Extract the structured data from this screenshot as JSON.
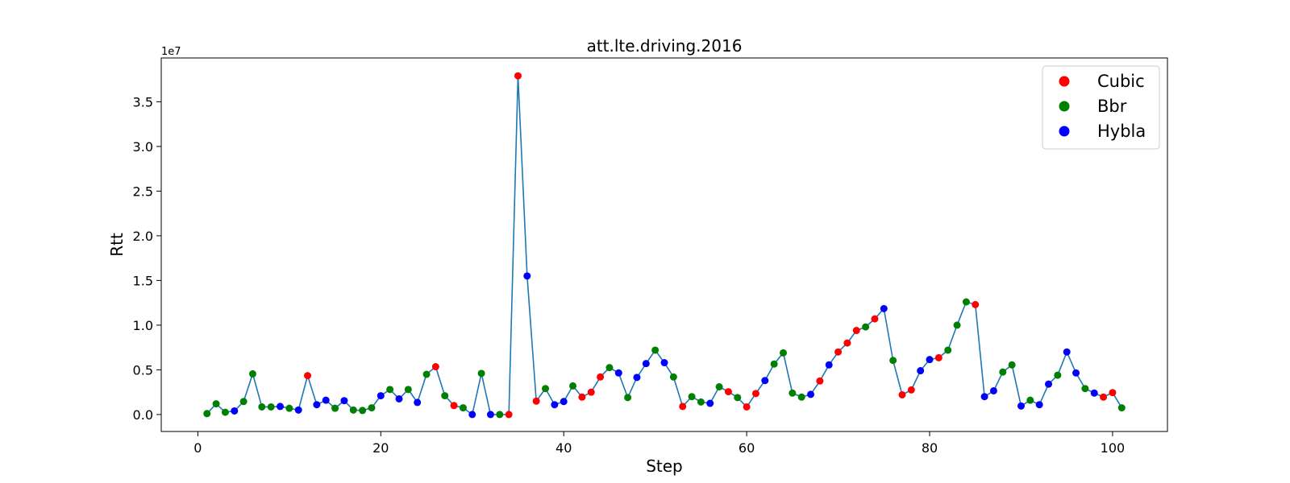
{
  "chart_data": {
    "type": "scatter",
    "title": "att.lte.driving.2016",
    "xlabel": "Step",
    "ylabel": "Rtt",
    "y_offset_label": "1e7",
    "xlim": [
      -4,
      106
    ],
    "ylim": [
      -1900000,
      39900000
    ],
    "x_ticks": [
      0,
      20,
      40,
      60,
      80,
      100
    ],
    "y_ticks": [
      0,
      5000000,
      10000000,
      15000000,
      20000000,
      25000000,
      30000000,
      35000000
    ],
    "y_tick_labels": [
      "0.0",
      "0.5",
      "1.0",
      "1.5",
      "2.0",
      "2.5",
      "3.0",
      "3.5"
    ],
    "grid": false,
    "legend_position": "top-right",
    "line_color": "#1f77b4",
    "legend": [
      {
        "label": "Cubic",
        "color": "#ff0000"
      },
      {
        "label": "Bbr",
        "color": "#008000"
      },
      {
        "label": "Hybla",
        "color": "#0000ff"
      }
    ],
    "points": [
      {
        "x": 1,
        "y": 100000,
        "series": "Bbr"
      },
      {
        "x": 2,
        "y": 1200000,
        "series": "Bbr"
      },
      {
        "x": 3,
        "y": 250000,
        "series": "Bbr"
      },
      {
        "x": 4,
        "y": 400000,
        "series": "Hybla"
      },
      {
        "x": 5,
        "y": 1450000,
        "series": "Bbr"
      },
      {
        "x": 6,
        "y": 4550000,
        "series": "Bbr"
      },
      {
        "x": 7,
        "y": 850000,
        "series": "Bbr"
      },
      {
        "x": 8,
        "y": 850000,
        "series": "Bbr"
      },
      {
        "x": 9,
        "y": 900000,
        "series": "Hybla"
      },
      {
        "x": 10,
        "y": 700000,
        "series": "Bbr"
      },
      {
        "x": 11,
        "y": 500000,
        "series": "Hybla"
      },
      {
        "x": 12,
        "y": 4350000,
        "series": "Cubic"
      },
      {
        "x": 13,
        "y": 1100000,
        "series": "Hybla"
      },
      {
        "x": 14,
        "y": 1600000,
        "series": "Hybla"
      },
      {
        "x": 15,
        "y": 700000,
        "series": "Bbr"
      },
      {
        "x": 16,
        "y": 1550000,
        "series": "Hybla"
      },
      {
        "x": 17,
        "y": 500000,
        "series": "Bbr"
      },
      {
        "x": 18,
        "y": 450000,
        "series": "Bbr"
      },
      {
        "x": 19,
        "y": 750000,
        "series": "Bbr"
      },
      {
        "x": 20,
        "y": 2100000,
        "series": "Hybla"
      },
      {
        "x": 21,
        "y": 2800000,
        "series": "Bbr"
      },
      {
        "x": 22,
        "y": 1750000,
        "series": "Hybla"
      },
      {
        "x": 23,
        "y": 2800000,
        "series": "Bbr"
      },
      {
        "x": 24,
        "y": 1350000,
        "series": "Hybla"
      },
      {
        "x": 25,
        "y": 4500000,
        "series": "Bbr"
      },
      {
        "x": 26,
        "y": 5350000,
        "series": "Cubic"
      },
      {
        "x": 27,
        "y": 2100000,
        "series": "Bbr"
      },
      {
        "x": 28,
        "y": 1000000,
        "series": "Cubic"
      },
      {
        "x": 29,
        "y": 750000,
        "series": "Bbr"
      },
      {
        "x": 30,
        "y": 0,
        "series": "Hybla"
      },
      {
        "x": 31,
        "y": 4600000,
        "series": "Bbr"
      },
      {
        "x": 32,
        "y": 0,
        "series": "Hybla"
      },
      {
        "x": 33,
        "y": 0,
        "series": "Bbr"
      },
      {
        "x": 34,
        "y": 0,
        "series": "Cubic"
      },
      {
        "x": 35,
        "y": 37900000,
        "series": "Cubic"
      },
      {
        "x": 36,
        "y": 15500000,
        "series": "Hybla"
      },
      {
        "x": 37,
        "y": 1500000,
        "series": "Cubic"
      },
      {
        "x": 38,
        "y": 2900000,
        "series": "Bbr"
      },
      {
        "x": 39,
        "y": 1100000,
        "series": "Hybla"
      },
      {
        "x": 40,
        "y": 1450000,
        "series": "Hybla"
      },
      {
        "x": 41,
        "y": 3200000,
        "series": "Bbr"
      },
      {
        "x": 42,
        "y": 1950000,
        "series": "Cubic"
      },
      {
        "x": 43,
        "y": 2500000,
        "series": "Cubic"
      },
      {
        "x": 44,
        "y": 4200000,
        "series": "Cubic"
      },
      {
        "x": 45,
        "y": 5250000,
        "series": "Bbr"
      },
      {
        "x": 46,
        "y": 4650000,
        "series": "Hybla"
      },
      {
        "x": 47,
        "y": 1900000,
        "series": "Bbr"
      },
      {
        "x": 48,
        "y": 4150000,
        "series": "Hybla"
      },
      {
        "x": 49,
        "y": 5700000,
        "series": "Hybla"
      },
      {
        "x": 50,
        "y": 7200000,
        "series": "Bbr"
      },
      {
        "x": 51,
        "y": 5800000,
        "series": "Hybla"
      },
      {
        "x": 52,
        "y": 4200000,
        "series": "Bbr"
      },
      {
        "x": 53,
        "y": 900000,
        "series": "Cubic"
      },
      {
        "x": 54,
        "y": 2000000,
        "series": "Bbr"
      },
      {
        "x": 55,
        "y": 1400000,
        "series": "Bbr"
      },
      {
        "x": 56,
        "y": 1250000,
        "series": "Hybla"
      },
      {
        "x": 57,
        "y": 3100000,
        "series": "Bbr"
      },
      {
        "x": 58,
        "y": 2550000,
        "series": "Cubic"
      },
      {
        "x": 59,
        "y": 1900000,
        "series": "Bbr"
      },
      {
        "x": 60,
        "y": 850000,
        "series": "Cubic"
      },
      {
        "x": 61,
        "y": 2350000,
        "series": "Cubic"
      },
      {
        "x": 62,
        "y": 3800000,
        "series": "Hybla"
      },
      {
        "x": 63,
        "y": 5650000,
        "series": "Bbr"
      },
      {
        "x": 64,
        "y": 6900000,
        "series": "Bbr"
      },
      {
        "x": 65,
        "y": 2400000,
        "series": "Bbr"
      },
      {
        "x": 66,
        "y": 1950000,
        "series": "Bbr"
      },
      {
        "x": 67,
        "y": 2250000,
        "series": "Hybla"
      },
      {
        "x": 68,
        "y": 3750000,
        "series": "Cubic"
      },
      {
        "x": 69,
        "y": 5550000,
        "series": "Hybla"
      },
      {
        "x": 70,
        "y": 7000000,
        "series": "Cubic"
      },
      {
        "x": 71,
        "y": 8000000,
        "series": "Cubic"
      },
      {
        "x": 72,
        "y": 9400000,
        "series": "Cubic"
      },
      {
        "x": 73,
        "y": 9800000,
        "series": "Bbr"
      },
      {
        "x": 74,
        "y": 10700000,
        "series": "Cubic"
      },
      {
        "x": 75,
        "y": 11850000,
        "series": "Hybla"
      },
      {
        "x": 76,
        "y": 6050000,
        "series": "Bbr"
      },
      {
        "x": 77,
        "y": 2200000,
        "series": "Cubic"
      },
      {
        "x": 78,
        "y": 2750000,
        "series": "Cubic"
      },
      {
        "x": 79,
        "y": 4900000,
        "series": "Hybla"
      },
      {
        "x": 80,
        "y": 6150000,
        "series": "Hybla"
      },
      {
        "x": 81,
        "y": 6350000,
        "series": "Cubic"
      },
      {
        "x": 82,
        "y": 7200000,
        "series": "Bbr"
      },
      {
        "x": 83,
        "y": 10000000,
        "series": "Bbr"
      },
      {
        "x": 84,
        "y": 12600000,
        "series": "Bbr"
      },
      {
        "x": 85,
        "y": 12300000,
        "series": "Cubic"
      },
      {
        "x": 86,
        "y": 2000000,
        "series": "Hybla"
      },
      {
        "x": 87,
        "y": 2650000,
        "series": "Hybla"
      },
      {
        "x": 88,
        "y": 4750000,
        "series": "Bbr"
      },
      {
        "x": 89,
        "y": 5550000,
        "series": "Bbr"
      },
      {
        "x": 90,
        "y": 950000,
        "series": "Hybla"
      },
      {
        "x": 91,
        "y": 1600000,
        "series": "Bbr"
      },
      {
        "x": 92,
        "y": 1100000,
        "series": "Hybla"
      },
      {
        "x": 93,
        "y": 3400000,
        "series": "Hybla"
      },
      {
        "x": 94,
        "y": 4400000,
        "series": "Bbr"
      },
      {
        "x": 95,
        "y": 7000000,
        "series": "Hybla"
      },
      {
        "x": 96,
        "y": 4650000,
        "series": "Hybla"
      },
      {
        "x": 97,
        "y": 2900000,
        "series": "Bbr"
      },
      {
        "x": 98,
        "y": 2400000,
        "series": "Hybla"
      },
      {
        "x": 99,
        "y": 1950000,
        "series": "Cubic"
      },
      {
        "x": 100,
        "y": 2450000,
        "series": "Cubic"
      },
      {
        "x": 101,
        "y": 750000,
        "series": "Bbr"
      }
    ]
  }
}
